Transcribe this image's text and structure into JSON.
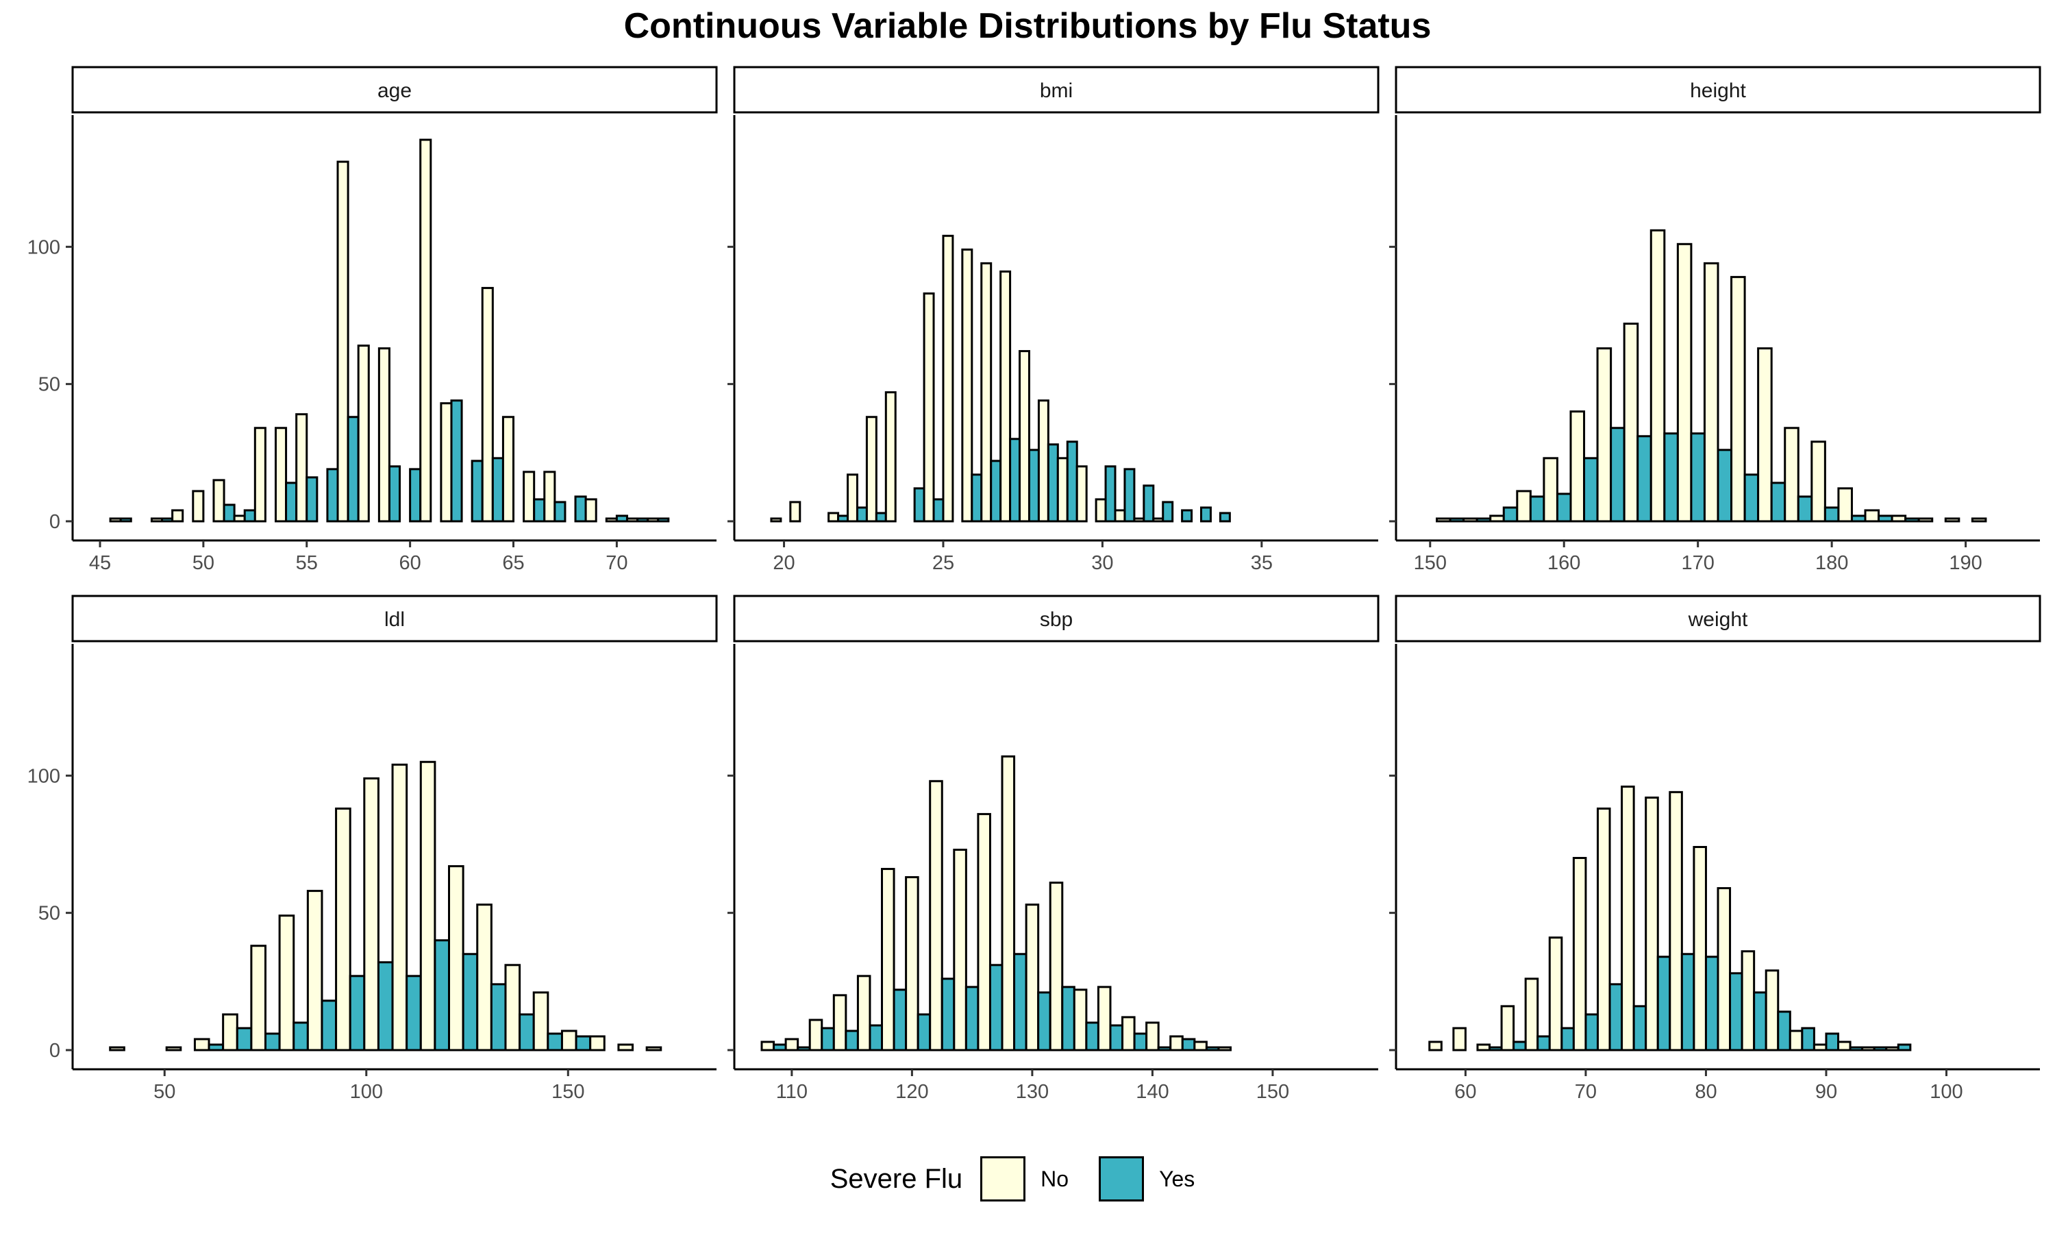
{
  "title": "Continuous Variable Distributions by Flu Status",
  "legend": {
    "title": "Severe Flu",
    "items": [
      {
        "label": "No",
        "color": "#FFFFE0"
      },
      {
        "label": "Yes",
        "color": "#3CB3C3"
      }
    ]
  },
  "chart_data": {
    "type": "bar",
    "subtype": "faceted-histogram",
    "ylim": [
      0,
      145
    ],
    "yticks": [
      0,
      50,
      100
    ],
    "legend_position": "bottom",
    "grid": false,
    "series_names": [
      "No",
      "Yes"
    ],
    "facets": [
      {
        "name": "age",
        "xlim": [
          45,
          73.5
        ],
        "xticks": [
          45,
          50,
          55,
          60,
          65,
          70
        ],
        "bins": [
          46,
          47,
          48,
          49,
          50,
          51,
          52,
          53,
          54,
          55,
          56,
          57,
          58,
          59,
          60,
          61,
          62,
          63,
          64,
          65,
          66,
          67,
          68,
          69,
          70,
          71,
          72
        ],
        "no": [
          1,
          0,
          1,
          4,
          11,
          15,
          2,
          34,
          34,
          39,
          0,
          131,
          64,
          63,
          0,
          139,
          43,
          0,
          85,
          38,
          18,
          18,
          0,
          8,
          1,
          1,
          1
        ],
        "yes": [
          1,
          0,
          1,
          0,
          0,
          6,
          4,
          0,
          14,
          16,
          19,
          38,
          0,
          20,
          19,
          0,
          44,
          22,
          23,
          0,
          8,
          7,
          9,
          0,
          2,
          1,
          1
        ]
      },
      {
        "name": "bmi",
        "xlim": [
          19.3,
          37.8
        ],
        "xticks": [
          20,
          25,
          30,
          35
        ],
        "bins": [
          19.9,
          20.5,
          21.1,
          21.7,
          22.3,
          22.9,
          23.5,
          24.1,
          24.7,
          25.3,
          25.9,
          26.5,
          27.1,
          27.7,
          28.3,
          28.9,
          29.5,
          30.1,
          30.7,
          31.3,
          31.9,
          32.5,
          33.1,
          33.7,
          34.3,
          34.9,
          35.5,
          36.1,
          36.7,
          37.3
        ],
        "no": [
          1,
          7,
          0,
          3,
          17,
          38,
          47,
          0,
          83,
          104,
          99,
          94,
          91,
          62,
          44,
          23,
          20,
          8,
          4,
          1,
          1,
          0,
          0,
          0,
          0,
          0,
          0,
          0,
          0,
          0
        ],
        "yes": [
          0,
          0,
          0,
          2,
          5,
          3,
          0,
          12,
          8,
          0,
          17,
          22,
          30,
          26,
          28,
          29,
          0,
          20,
          19,
          13,
          7,
          4,
          5,
          3,
          0,
          0,
          0,
          0,
          0,
          0
        ]
      },
      {
        "name": "height",
        "xlim": [
          149.5,
          193.5
        ],
        "xticks": [
          150,
          160,
          170,
          180,
          190
        ],
        "bins": [
          151.5,
          153.5,
          155.5,
          157.5,
          159.5,
          161.5,
          163.5,
          165.5,
          167.5,
          169.5,
          171.5,
          173.5,
          175.5,
          177.5,
          179.5,
          181.5,
          183.5,
          185.5,
          187.5,
          189.5,
          191.5
        ],
        "no": [
          1,
          1,
          2,
          11,
          23,
          40,
          63,
          72,
          106,
          101,
          94,
          89,
          63,
          34,
          29,
          12,
          4,
          2,
          1,
          1,
          1
        ],
        "yes": [
          1,
          1,
          5,
          9,
          10,
          23,
          34,
          31,
          32,
          32,
          26,
          17,
          14,
          9,
          5,
          2,
          2,
          1,
          0,
          0,
          0
        ]
      },
      {
        "name": "ldl",
        "xlim": [
          34,
          180
        ],
        "xticks": [
          50,
          100,
          150
        ],
        "bins": [
          40,
          47,
          54,
          61,
          68,
          75,
          82,
          89,
          96,
          103,
          110,
          117,
          124,
          131,
          138,
          145,
          152,
          159,
          166,
          173
        ],
        "no": [
          1,
          0,
          1,
          4,
          13,
          38,
          49,
          58,
          88,
          99,
          104,
          105,
          67,
          53,
          31,
          21,
          7,
          5,
          2,
          1
        ],
        "yes": [
          0,
          0,
          0,
          2,
          8,
          6,
          10,
          18,
          27,
          32,
          27,
          40,
          35,
          24,
          13,
          6,
          5,
          0,
          0,
          0
        ]
      },
      {
        "name": "sbp",
        "xlim": [
          107.5,
          156.5
        ],
        "xticks": [
          110,
          120,
          130,
          140,
          150
        ],
        "bins": [
          108.5,
          110.5,
          112.5,
          114.5,
          116.5,
          118.5,
          120.5,
          122.5,
          124.5,
          126.5,
          128.5,
          130.5,
          132.5,
          134.5,
          136.5,
          138.5,
          140.5,
          142.5,
          144.5,
          146.5,
          148.5,
          150.5,
          152.5,
          154.5
        ],
        "no": [
          3,
          4,
          11,
          20,
          27,
          66,
          63,
          98,
          73,
          86,
          107,
          53,
          61,
          22,
          23,
          12,
          10,
          5,
          3,
          1,
          0,
          0,
          0,
          0
        ],
        "yes": [
          2,
          1,
          8,
          7,
          9,
          22,
          13,
          26,
          23,
          31,
          35,
          21,
          23,
          10,
          9,
          6,
          1,
          4,
          1,
          0,
          0,
          0,
          0,
          0
        ]
      },
      {
        "name": "weight",
        "xlim": [
          56.5,
          105.5
        ],
        "xticks": [
          60,
          70,
          80,
          90,
          100
        ],
        "bins": [
          58,
          60,
          62,
          64,
          66,
          68,
          70,
          72,
          74,
          76,
          78,
          80,
          82,
          84,
          86,
          88,
          90,
          92,
          94,
          96,
          98,
          100,
          102,
          104
        ],
        "no": [
          3,
          8,
          2,
          16,
          26,
          41,
          70,
          88,
          96,
          92,
          94,
          74,
          59,
          36,
          29,
          7,
          2,
          3,
          1,
          1,
          0,
          0,
          0,
          0
        ],
        "yes": [
          0,
          0,
          1,
          3,
          5,
          8,
          13,
          24,
          16,
          34,
          35,
          34,
          28,
          21,
          14,
          8,
          6,
          1,
          1,
          2,
          0,
          0,
          0,
          0
        ]
      }
    ]
  }
}
